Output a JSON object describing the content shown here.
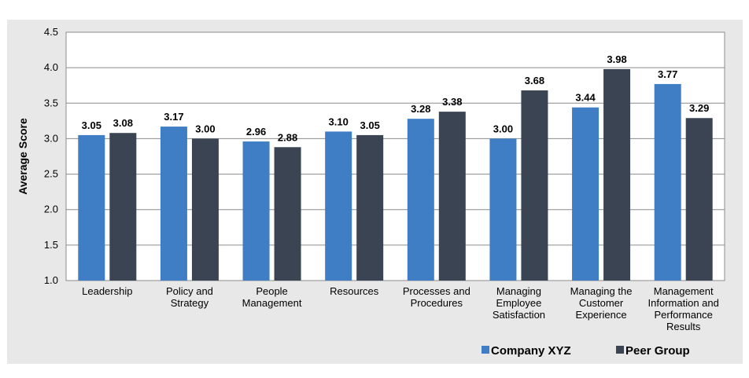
{
  "chart_data": {
    "type": "bar",
    "ylabel": "Average Score",
    "ylim": [
      1.0,
      4.5
    ],
    "yticks": [
      "1.0",
      "1.5",
      "2.0",
      "2.5",
      "3.0",
      "3.5",
      "4.0",
      "4.5"
    ],
    "grid": true,
    "legend_position": "bottom-right",
    "categories": [
      [
        "Leadership"
      ],
      [
        "Policy and",
        "Strategy"
      ],
      [
        "People",
        "Management"
      ],
      [
        "Resources"
      ],
      [
        "Processes and",
        "Procedures"
      ],
      [
        "Managing",
        "Employee",
        "Satisfaction"
      ],
      [
        "Managing the",
        "Customer",
        "Experience"
      ],
      [
        "Management",
        "Information and",
        "Performance",
        "Results"
      ]
    ],
    "series": [
      {
        "name": "Company XYZ",
        "color": "#3f7dc4",
        "values": [
          3.05,
          3.17,
          2.96,
          3.1,
          3.28,
          3.0,
          3.44,
          3.77
        ],
        "labels": [
          "3.05",
          "3.17",
          "2.96",
          "3.10",
          "3.28",
          "3.00",
          "3.44",
          "3.77"
        ]
      },
      {
        "name": "Peer Group",
        "color": "#3b4453",
        "values": [
          3.08,
          3.0,
          2.88,
          3.05,
          3.38,
          3.68,
          3.98,
          3.29
        ],
        "labels": [
          "3.08",
          "3.00",
          "2.88",
          "3.05",
          "3.38",
          "3.68",
          "3.98",
          "3.29"
        ]
      }
    ]
  }
}
